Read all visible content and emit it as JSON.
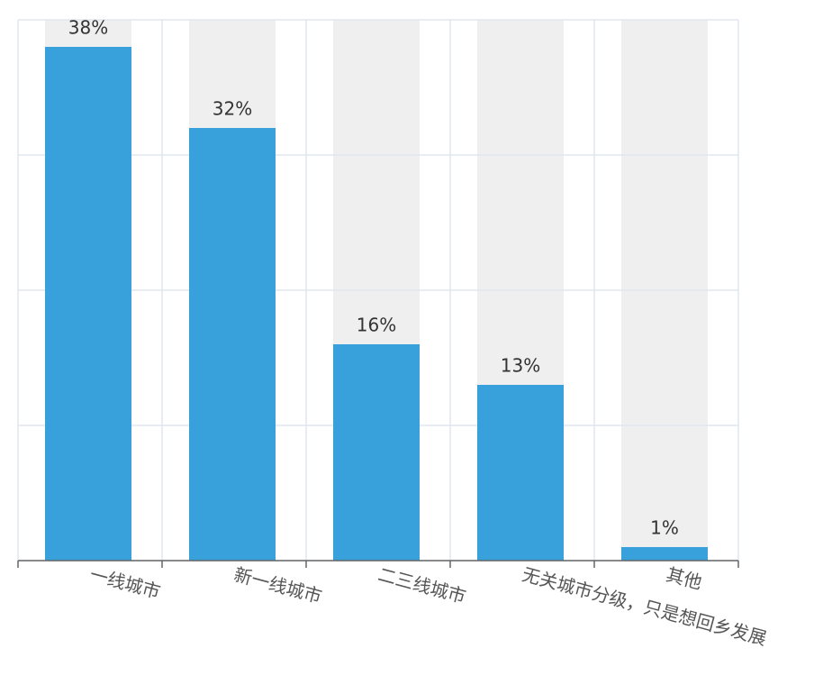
{
  "chart_data": {
    "type": "bar",
    "categories": [
      "一线城市",
      "新一线城市",
      "二三线城市",
      "无关城市分级，只是想回乡发展",
      "其他"
    ],
    "values": [
      38,
      32,
      16,
      13,
      1
    ],
    "value_labels": [
      "38%",
      "32%",
      "16%",
      "13%",
      "1%"
    ],
    "color": "#38a1db",
    "background_color": "#efefef",
    "ylim": [
      0,
      40
    ],
    "yticks": [
      0,
      10,
      20,
      30,
      40
    ],
    "grid": true
  }
}
